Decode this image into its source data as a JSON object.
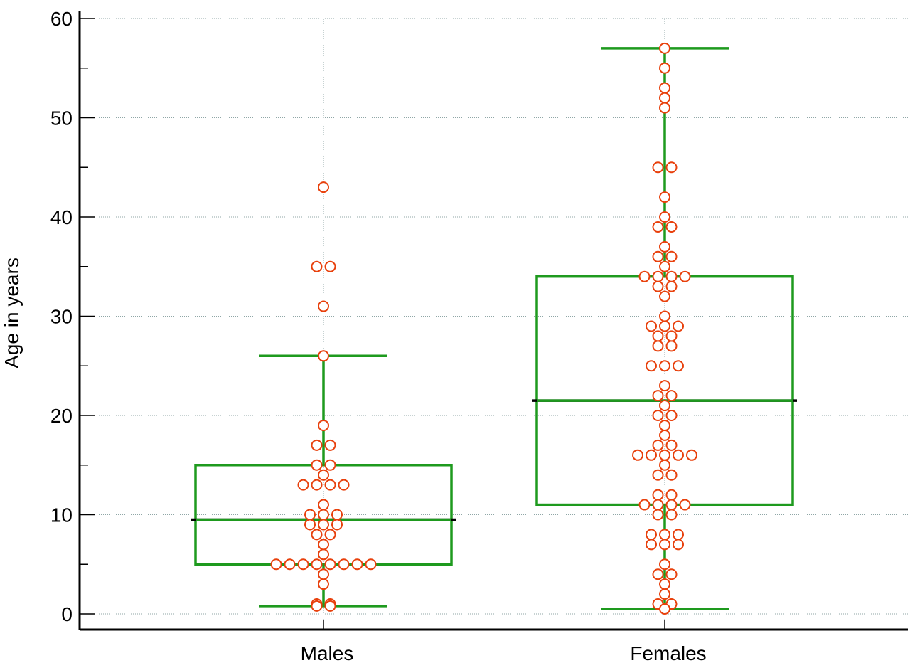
{
  "chart_data": {
    "type": "box",
    "title": "",
    "xlabel": "",
    "ylabel": "Age in years",
    "ylim": [
      0,
      60
    ],
    "yticks": [
      0,
      10,
      20,
      30,
      40,
      50,
      60
    ],
    "yticks_minor_step": 5,
    "grid": true,
    "categories": [
      "Males",
      "Females"
    ],
    "boxes": [
      {
        "category": "Males",
        "whisker_low": 0.8,
        "q1": 5,
        "median": 9.5,
        "q3": 15,
        "whisker_high": 26,
        "points": [
          0.8,
          0.8,
          1,
          1,
          3,
          4,
          5,
          5,
          5,
          5,
          5,
          5,
          5,
          5,
          6,
          7,
          8,
          8,
          9,
          9,
          9,
          10,
          10,
          10,
          11,
          13,
          13,
          13,
          13,
          14,
          15,
          15,
          17,
          17,
          19,
          26,
          31,
          35,
          35,
          43
        ]
      },
      {
        "category": "Females",
        "whisker_low": 0.5,
        "q1": 11,
        "median": 21.5,
        "q3": 34,
        "whisker_high": 57,
        "points": [
          0.5,
          1,
          1,
          2,
          3,
          4,
          4,
          5,
          7,
          7,
          7,
          8,
          8,
          8,
          10,
          10,
          11,
          11,
          11,
          11,
          12,
          12,
          14,
          14,
          15,
          16,
          16,
          16,
          16,
          16,
          17,
          17,
          18,
          19,
          20,
          20,
          21,
          22,
          22,
          23,
          25,
          25,
          25,
          27,
          27,
          28,
          28,
          29,
          29,
          29,
          30,
          32,
          33,
          33,
          34,
          34,
          34,
          34,
          35,
          36,
          36,
          37,
          39,
          39,
          40,
          42,
          45,
          45,
          51,
          52,
          53,
          55,
          57
        ]
      }
    ],
    "colors": {
      "box": "#1e9a1e",
      "median_tick": "#000000",
      "point_stroke": "#e8400c",
      "point_fill": "#ffffff",
      "grid": "#8fa6a6",
      "axis": "#000000"
    }
  }
}
